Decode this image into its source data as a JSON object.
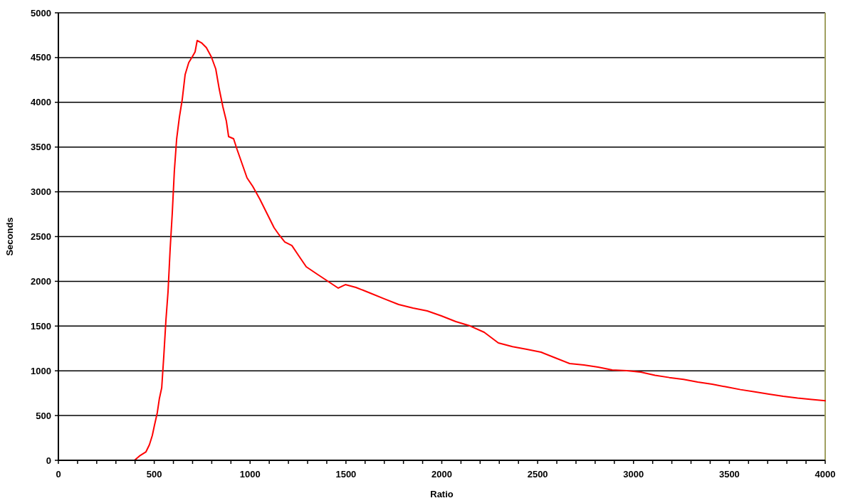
{
  "chart_data": {
    "type": "line",
    "xlabel": "Ratio",
    "ylabel": "Seconds",
    "xlim": [
      0,
      4000
    ],
    "xticks": [
      0,
      {
        "value": 100,
        "label": null
      },
      {
        "value": 200,
        "label": null
      },
      {
        "value": 300,
        "label": null
      },
      {
        "value": 400,
        "label": null
      },
      500,
      {
        "value": 600,
        "label": null
      },
      {
        "value": 700,
        "label": null
      },
      {
        "value": 800,
        "label": null
      },
      {
        "value": 900,
        "label": null
      },
      1000,
      {
        "value": 1100,
        "label": null
      },
      {
        "value": 1200,
        "label": null
      },
      {
        "value": 1300,
        "label": null
      },
      {
        "value": 1400,
        "label": null
      },
      1500,
      {
        "value": 1600,
        "label": null
      },
      {
        "value": 1700,
        "label": null
      },
      {
        "value": 1800,
        "label": null
      },
      {
        "value": 1900,
        "label": null
      },
      2000,
      {
        "value": 2100,
        "label": null
      },
      {
        "value": 2200,
        "label": null
      },
      {
        "value": 2300,
        "label": null
      },
      {
        "value": 2400,
        "label": null
      },
      2500,
      {
        "value": 2600,
        "label": null
      },
      {
        "value": 2700,
        "label": null
      },
      {
        "value": 2800,
        "label": null
      },
      {
        "value": 2900,
        "label": null
      },
      3000,
      {
        "value": 3100,
        "label": null
      },
      {
        "value": 3200,
        "label": null
      },
      {
        "value": 3300,
        "label": null
      },
      {
        "value": 3400,
        "label": null
      },
      3500,
      {
        "value": 3600,
        "label": null
      },
      {
        "value": 3700,
        "label": null
      },
      {
        "value": 3800,
        "label": null
      },
      {
        "value": 3900,
        "label": null
      },
      4000
    ],
    "ylim": [
      0,
      5000
    ],
    "yticks": [
      0,
      500,
      1000,
      1500,
      2000,
      2500,
      3000,
      3500,
      4000,
      4500,
      5000
    ],
    "grid": "y",
    "marker": "none",
    "line_style": "solid",
    "x": [
      397,
      423,
      457,
      475,
      490,
      501,
      516,
      527,
      539,
      550,
      561,
      572,
      583,
      594,
      605,
      617,
      631,
      646,
      661,
      680,
      698,
      713,
      724,
      746,
      772,
      798,
      821,
      839,
      858,
      876,
      888,
      914,
      932,
      958,
      984,
      1014,
      1051,
      1088,
      1125,
      1151,
      1181,
      1218,
      1255,
      1293,
      1348,
      1404,
      1460,
      1497,
      1552,
      1627,
      1701,
      1775,
      1850,
      1924,
      1998,
      2073,
      2147,
      2221,
      2295,
      2369,
      2444,
      2518,
      2592,
      2667,
      2741,
      2815,
      2889,
      2964,
      3038,
      3112,
      3187,
      3261,
      3335,
      3410,
      3484,
      3558,
      3633,
      3707,
      3781,
      3856,
      3930,
      4000
    ],
    "series": [
      {
        "color": "#ff0000",
        "values": [
          0,
          48,
          95,
          175,
          278,
          390,
          533,
          692,
          811,
          1169,
          1566,
          1884,
          2361,
          2758,
          3235,
          3593,
          3831,
          4030,
          4308,
          4444,
          4507,
          4563,
          4690,
          4666,
          4610,
          4507,
          4372,
          4149,
          3951,
          3792,
          3617,
          3593,
          3474,
          3315,
          3156,
          3060,
          2917,
          2758,
          2599,
          2520,
          2440,
          2400,
          2281,
          2162,
          2083,
          2003,
          1924,
          1963,
          1932,
          1868,
          1804,
          1741,
          1701,
          1669,
          1614,
          1550,
          1502,
          1431,
          1312,
          1270,
          1240,
          1208,
          1145,
          1081,
          1065,
          1041,
          1010,
          1002,
          986,
          950,
          925,
          905,
          875,
          850,
          820,
          790,
          765,
          740,
          715,
          695,
          680,
          665
        ]
      }
    ]
  }
}
